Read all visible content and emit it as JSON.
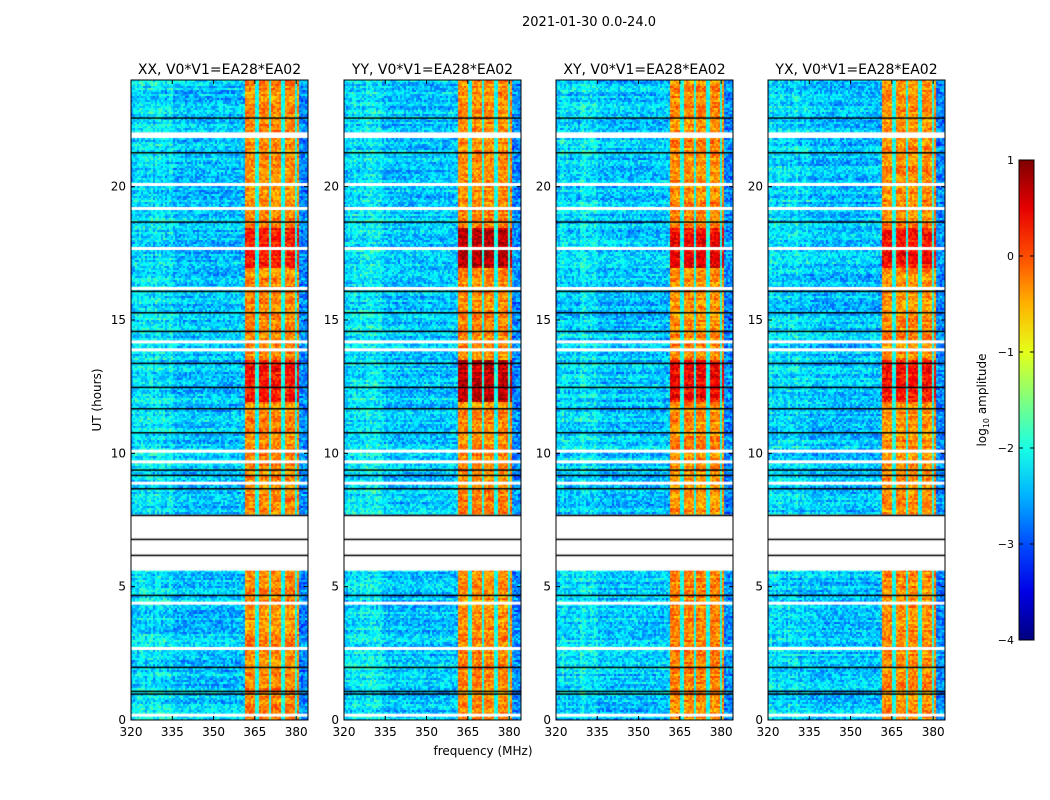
{
  "chart_data": {
    "type": "heatmap",
    "suptitle": "2021-01-30 0.0-24.0",
    "xlabel": "frequency (MHz)",
    "ylabel": "UT (hours)",
    "xlim": [
      320,
      384.3
    ],
    "ylim": [
      0,
      24
    ],
    "xticks": [
      "320",
      "335",
      "350",
      "365",
      "380"
    ],
    "xtick_values": [
      320,
      335,
      350,
      365,
      380
    ],
    "yticks": [
      "0",
      "5",
      "10",
      "15",
      "20"
    ],
    "ytick_values": [
      0,
      5,
      10,
      15,
      20
    ],
    "panels": [
      {
        "title": "XX, V0*V1=EA28*EA02",
        "band_peak": 0.0,
        "hot_hours": [
          [
            12,
            13.5
          ],
          [
            17,
            18.5
          ]
        ]
      },
      {
        "title": "YY, V0*V1=EA28*EA02",
        "band_peak": 0.4,
        "hot_hours": [
          [
            12,
            13.5
          ],
          [
            17,
            18.5
          ]
        ]
      },
      {
        "title": "XY, V0*V1=EA28*EA02",
        "band_peak": 0.1,
        "hot_hours": [
          [
            12,
            13.5
          ],
          [
            17,
            18.5
          ]
        ]
      },
      {
        "title": "YX, V0*V1=EA28*EA02",
        "band_peak": 0.0,
        "hot_hours": [
          [
            12,
            13.5
          ],
          [
            17,
            18.5
          ]
        ]
      }
    ],
    "background_level": -2.8,
    "band_level": -0.6,
    "rfi_band_mhz": [
      360.7,
      380.7
    ],
    "channel_gaps_mhz": [
      365.3,
      370,
      374.8,
      379.5
    ],
    "flagged_gap_hours": [
      [
        5.6,
        7.7
      ]
    ],
    "white_line_hours": [
      0.2,
      2.7,
      4.4,
      8.9,
      9.7,
      10.1,
      13.9,
      14.2,
      16.2,
      17.7,
      19.2,
      20.1,
      21.9,
      22.0
    ],
    "black_line_hours": [
      1.0,
      1.1,
      2.0,
      4.7,
      6.2,
      6.8,
      7.7,
      8.7,
      9.2,
      9.4,
      10.8,
      11.7,
      12.5,
      13.4,
      14.6,
      15.3,
      16.1,
      18.7,
      21.3,
      22.6
    ],
    "colorbar": {
      "label": "log",
      "label_sub": "10",
      "label_suffix": " amplitude",
      "range": [
        -4,
        1
      ],
      "ticks": [
        "1",
        "0",
        "−1",
        "−2",
        "−3",
        "−4"
      ],
      "tick_values": [
        1,
        0,
        -1,
        -2,
        -3,
        -4
      ],
      "colormap": "jet"
    }
  }
}
